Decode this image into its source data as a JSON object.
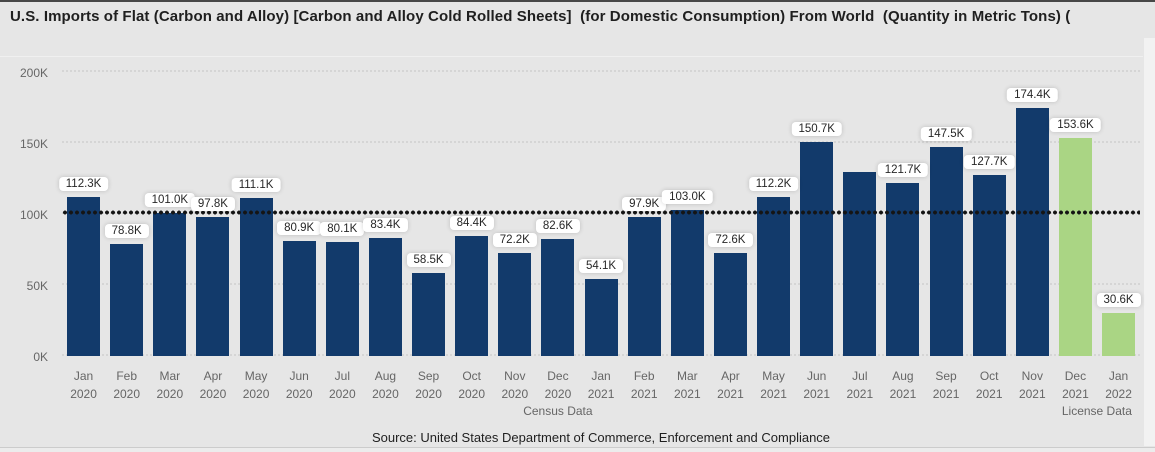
{
  "header": {
    "title": "U.S. Imports of Flat (Carbon and Alloy) [Carbon and Alloy Cold Rolled Sheets]  (for Domestic Consumption) From World  (Quantity in Metric Tons) ("
  },
  "footer": {
    "source_note": "Source: United States Department of Commerce, Enforcement and Compliance"
  },
  "colors": {
    "census_bar": "#123a6b",
    "license_bar": "#aad584",
    "background": "#e6e6e6",
    "reference_line": "#151515",
    "axis_text": "#666666",
    "label_box_bg": "#ffffff"
  },
  "chart_data": {
    "type": "bar",
    "title": "U.S. Imports of Flat (Carbon and Alloy) [Carbon and Alloy Cold Rolled Sheets]  (for Domestic Consumption) From World  (Quantity in Metric Tons)",
    "xlabel": "",
    "ylabel": "",
    "ylim": [
      0,
      200
    ],
    "y_ticks": [
      "0K",
      "50K",
      "100K",
      "150K",
      "200K"
    ],
    "grid": "dotted-horizontal",
    "legend_position": "none",
    "reference_line": {
      "value": 100.5,
      "style": "dotted",
      "color": "#151515"
    },
    "x_groups": [
      {
        "label": "Census Data",
        "start_index": 0,
        "end_index": 22
      },
      {
        "label": "License Data",
        "start_index": 23,
        "end_index": 24
      }
    ],
    "points": [
      {
        "month": "Jan",
        "year": "2020",
        "value": 112.3,
        "label": "112.3K",
        "series": "census"
      },
      {
        "month": "Feb",
        "year": "2020",
        "value": 78.8,
        "label": "78.8K",
        "series": "census"
      },
      {
        "month": "Mar",
        "year": "2020",
        "value": 101.0,
        "label": "101.0K",
        "series": "census"
      },
      {
        "month": "Apr",
        "year": "2020",
        "value": 97.8,
        "label": "97.8K",
        "series": "census"
      },
      {
        "month": "May",
        "year": "2020",
        "value": 111.1,
        "label": "111.1K",
        "series": "census"
      },
      {
        "month": "Jun",
        "year": "2020",
        "value": 80.9,
        "label": "80.9K",
        "series": "census"
      },
      {
        "month": "Jul",
        "year": "2020",
        "value": 80.1,
        "label": "80.1K",
        "series": "census"
      },
      {
        "month": "Aug",
        "year": "2020",
        "value": 83.4,
        "label": "83.4K",
        "series": "census"
      },
      {
        "month": "Sep",
        "year": "2020",
        "value": 58.5,
        "label": "58.5K",
        "series": "census"
      },
      {
        "month": "Oct",
        "year": "2020",
        "value": 84.4,
        "label": "84.4K",
        "series": "census"
      },
      {
        "month": "Nov",
        "year": "2020",
        "value": 72.2,
        "label": "72.2K",
        "series": "census"
      },
      {
        "month": "Dec",
        "year": "2020",
        "value": 82.6,
        "label": "82.6K",
        "series": "census"
      },
      {
        "month": "Jan",
        "year": "2021",
        "value": 54.1,
        "label": "54.1K",
        "series": "census"
      },
      {
        "month": "Feb",
        "year": "2021",
        "value": 97.9,
        "label": "97.9K",
        "series": "census"
      },
      {
        "month": "Mar",
        "year": "2021",
        "value": 103.0,
        "label": "103.0K",
        "series": "census"
      },
      {
        "month": "Apr",
        "year": "2021",
        "value": 72.6,
        "label": "72.6K",
        "series": "census"
      },
      {
        "month": "May",
        "year": "2021",
        "value": 112.2,
        "label": "112.2K",
        "series": "census"
      },
      {
        "month": "Jun",
        "year": "2021",
        "value": 150.7,
        "label": "150.7K",
        "series": "census"
      },
      {
        "month": "Jul",
        "year": "2021",
        "value": 129.8,
        "label": null,
        "series": "census"
      },
      {
        "month": "Aug",
        "year": "2021",
        "value": 121.7,
        "label": "121.7K",
        "series": "census"
      },
      {
        "month": "Sep",
        "year": "2021",
        "value": 147.5,
        "label": "147.5K",
        "series": "census"
      },
      {
        "month": "Oct",
        "year": "2021",
        "value": 127.7,
        "label": "127.7K",
        "series": "census"
      },
      {
        "month": "Nov",
        "year": "2021",
        "value": 174.4,
        "label": "174.4K",
        "series": "census"
      },
      {
        "month": "Dec",
        "year": "2021",
        "value": 153.6,
        "label": "153.6K",
        "series": "license"
      },
      {
        "month": "Jan",
        "year": "2022",
        "value": 30.6,
        "label": "30.6K",
        "series": "license"
      }
    ]
  }
}
